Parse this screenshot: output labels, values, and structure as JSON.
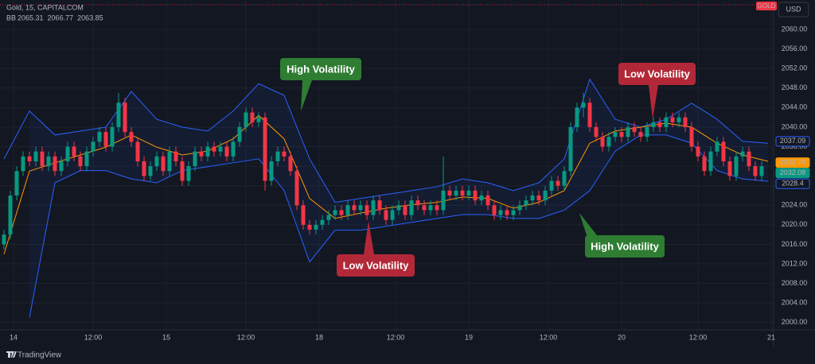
{
  "chart_data": {
    "type": "candlestick",
    "title": "Gold, 15, CAPITALCOM",
    "indicator": {
      "name": "BB",
      "values": [
        2065.31,
        2066.77,
        2063.85
      ],
      "colors": [
        "#ff9800",
        "#2962ff",
        "#2962ff"
      ]
    },
    "symbol_badge": "GOLD",
    "currency": "USD",
    "footer": "TradingView",
    "up_color": "#089981",
    "down_color": "#f23645",
    "grid": true,
    "xlim": [
      0,
      121
    ],
    "ylim": [
      1998.5,
      2064.4
    ],
    "xticks": [
      {
        "value": 1.5,
        "label": "14"
      },
      {
        "value": 14,
        "label": "12:00"
      },
      {
        "value": 25.5,
        "label": "15"
      },
      {
        "value": 38,
        "label": "12:00"
      },
      {
        "value": 49.5,
        "label": "18"
      },
      {
        "value": 61.5,
        "label": "12:00"
      },
      {
        "value": 73,
        "label": "19"
      },
      {
        "value": 85.5,
        "label": "12:00"
      },
      {
        "value": 97,
        "label": "20"
      },
      {
        "value": 109,
        "label": "12:00"
      },
      {
        "value": 120.5,
        "label": "21"
      }
    ],
    "yticks": [
      {
        "value": 2000,
        "label": "2000.00"
      },
      {
        "value": 2004,
        "label": "2004.00"
      },
      {
        "value": 2008,
        "label": "2008.00"
      },
      {
        "value": 2012,
        "label": "2012.00"
      },
      {
        "value": 2016,
        "label": "2016.00"
      },
      {
        "value": 2020,
        "label": "2020.00"
      },
      {
        "value": 2024,
        "label": "2024.00"
      },
      {
        "value": 2028,
        "label": "2028.00"
      },
      {
        "value": 2032,
        "label": "2032.00"
      },
      {
        "value": 2036,
        "label": "2036.00"
      },
      {
        "value": 2040,
        "label": "2040.00"
      },
      {
        "value": 2044,
        "label": "2044.00"
      },
      {
        "value": 2048,
        "label": "2048.00"
      },
      {
        "value": 2052,
        "label": "2052.00"
      },
      {
        "value": 2056,
        "label": "2056.00"
      },
      {
        "value": 2060,
        "label": "2060.00"
      }
    ],
    "candles": [
      [
        2016,
        2019,
        2015,
        2018
      ],
      [
        2018,
        2027,
        2017,
        2026
      ],
      [
        2026,
        2032,
        2025,
        2031
      ],
      [
        2031,
        2035,
        2030,
        2034
      ],
      [
        2034,
        2035,
        2032,
        2033
      ],
      [
        2033,
        2036,
        2032,
        2035
      ],
      [
        2035,
        2036,
        2031,
        2032
      ],
      [
        2032,
        2035,
        2031,
        2034
      ],
      [
        2034,
        2035,
        2030,
        2031
      ],
      [
        2031,
        2034,
        2030,
        2033
      ],
      [
        2033,
        2037,
        2032,
        2036
      ],
      [
        2036,
        2037,
        2033,
        2034
      ],
      [
        2034,
        2035,
        2031,
        2032
      ],
      [
        2032,
        2036,
        2031,
        2035
      ],
      [
        2035,
        2038,
        2034,
        2037
      ],
      [
        2037,
        2040,
        2036,
        2039
      ],
      [
        2039,
        2040,
        2035,
        2036
      ],
      [
        2036,
        2041,
        2035,
        2040
      ],
      [
        2040,
        2047,
        2039,
        2045
      ],
      [
        2045,
        2046,
        2038,
        2039
      ],
      [
        2039,
        2040,
        2036,
        2037
      ],
      [
        2037,
        2038,
        2032,
        2033
      ],
      [
        2033,
        2034,
        2029,
        2030
      ],
      [
        2030,
        2033,
        2029,
        2032
      ],
      [
        2032,
        2035,
        2031,
        2034
      ],
      [
        2034,
        2035,
        2030,
        2031
      ],
      [
        2031,
        2036,
        2030,
        2035
      ],
      [
        2035,
        2036,
        2032,
        2033
      ],
      [
        2033,
        2034,
        2028,
        2029
      ],
      [
        2029,
        2033,
        2028,
        2032
      ],
      [
        2032,
        2036,
        2031,
        2035
      ],
      [
        2035,
        2036,
        2033,
        2034
      ],
      [
        2034,
        2037,
        2033,
        2036
      ],
      [
        2036,
        2037,
        2034,
        2035
      ],
      [
        2035,
        2037,
        2034,
        2036
      ],
      [
        2036,
        2037,
        2033,
        2034
      ],
      [
        2034,
        2038,
        2033,
        2037
      ],
      [
        2037,
        2041,
        2036,
        2040
      ],
      [
        2040,
        2044,
        2039,
        2043
      ],
      [
        2043,
        2044,
        2040,
        2041
      ],
      [
        2041,
        2043,
        2040,
        2042
      ],
      [
        2042,
        2043,
        2027,
        2029
      ],
      [
        2029,
        2034,
        2028,
        2033
      ],
      [
        2033,
        2036,
        2032,
        2035
      ],
      [
        2035,
        2036,
        2033,
        2034
      ],
      [
        2034,
        2035,
        2030,
        2031
      ],
      [
        2031,
        2032,
        2023,
        2024
      ],
      [
        2024,
        2025,
        2019,
        2020
      ],
      [
        2020,
        2021,
        2018,
        2019
      ],
      [
        2019,
        2021,
        2018,
        2020
      ],
      [
        2020,
        2022,
        2019,
        2021
      ],
      [
        2021,
        2023,
        2020,
        2022
      ],
      [
        2022,
        2024,
        2021,
        2023
      ],
      [
        2023,
        2024,
        2021,
        2022
      ],
      [
        2022,
        2025,
        2021,
        2024
      ],
      [
        2024,
        2025,
        2022,
        2023
      ],
      [
        2023,
        2025,
        2022,
        2024
      ],
      [
        2024,
        2025,
        2021,
        2022
      ],
      [
        2022,
        2026,
        2021,
        2025
      ],
      [
        2025,
        2026,
        2022,
        2023
      ],
      [
        2023,
        2024,
        2020,
        2021
      ],
      [
        2021,
        2024,
        2020,
        2023
      ],
      [
        2023,
        2025,
        2022,
        2024
      ],
      [
        2024,
        2025,
        2021,
        2022
      ],
      [
        2022,
        2026,
        2021,
        2025
      ],
      [
        2025,
        2026,
        2023,
        2024
      ],
      [
        2024,
        2025,
        2022,
        2023
      ],
      [
        2023,
        2025,
        2022,
        2024
      ],
      [
        2024,
        2025,
        2022,
        2023
      ],
      [
        2023,
        2034,
        2022,
        2027
      ],
      [
        2027,
        2028,
        2025,
        2026
      ],
      [
        2026,
        2028,
        2025,
        2027
      ],
      [
        2027,
        2028,
        2025,
        2026
      ],
      [
        2026,
        2028,
        2025,
        2027
      ],
      [
        2027,
        2028,
        2024,
        2025
      ],
      [
        2025,
        2027,
        2024,
        2026
      ],
      [
        2026,
        2027,
        2023,
        2024
      ],
      [
        2024,
        2025,
        2021,
        2022
      ],
      [
        2022,
        2024,
        2021,
        2023
      ],
      [
        2023,
        2024,
        2021,
        2022
      ],
      [
        2022,
        2024,
        2021,
        2023
      ],
      [
        2023,
        2025,
        2022,
        2024
      ],
      [
        2024,
        2026,
        2023,
        2025
      ],
      [
        2025,
        2027,
        2024,
        2026
      ],
      [
        2026,
        2027,
        2024,
        2025
      ],
      [
        2025,
        2028,
        2024,
        2027
      ],
      [
        2027,
        2030,
        2026,
        2029
      ],
      [
        2029,
        2030,
        2027,
        2028
      ],
      [
        2028,
        2032,
        2027,
        2031
      ],
      [
        2031,
        2041,
        2030,
        2040
      ],
      [
        2040,
        2045,
        2039,
        2044
      ],
      [
        2044,
        2047,
        2042,
        2045
      ],
      [
        2045,
        2046,
        2039,
        2040
      ],
      [
        2040,
        2041,
        2037,
        2038
      ],
      [
        2038,
        2039,
        2035,
        2036
      ],
      [
        2036,
        2039,
        2035,
        2038
      ],
      [
        2038,
        2040,
        2037,
        2039
      ],
      [
        2039,
        2040,
        2037,
        2038
      ],
      [
        2038,
        2041,
        2037,
        2040
      ],
      [
        2040,
        2041,
        2038,
        2039
      ],
      [
        2039,
        2040,
        2037,
        2038
      ],
      [
        2038,
        2041,
        2037,
        2040
      ],
      [
        2040,
        2042,
        2039,
        2041
      ],
      [
        2041,
        2042,
        2039,
        2040
      ],
      [
        2040,
        2043,
        2039,
        2042
      ],
      [
        2042,
        2043,
        2040,
        2041
      ],
      [
        2041,
        2043,
        2040,
        2042
      ],
      [
        2042,
        2043,
        2039,
        2040
      ],
      [
        2040,
        2041,
        2035,
        2036
      ],
      [
        2036,
        2037,
        2033,
        2034
      ],
      [
        2034,
        2035,
        2030,
        2031
      ],
      [
        2031,
        2036,
        2030,
        2035
      ],
      [
        2035,
        2038,
        2034,
        2037
      ],
      [
        2037,
        2038,
        2032,
        2033
      ],
      [
        2033,
        2034,
        2029,
        2030
      ],
      [
        2030,
        2035,
        2029,
        2034
      ],
      [
        2034,
        2036,
        2033,
        2035
      ],
      [
        2035,
        2036,
        2031,
        2032
      ],
      [
        2032,
        2033,
        2029,
        2030
      ],
      [
        2030,
        2033,
        2029,
        2032
      ]
    ],
    "bands": {
      "x": [
        0,
        4,
        8,
        12,
        16,
        20,
        24,
        28,
        32,
        36,
        40,
        44,
        48,
        52,
        56,
        60,
        64,
        68,
        72,
        76,
        80,
        84,
        88,
        92,
        96,
        100,
        104,
        108,
        112,
        116,
        120
      ],
      "series": [
        {
          "color": "#2962ff",
          "values": [
            2033.5,
            2043.3,
            2038.4,
            2039.2,
            2040.0,
            2047.3,
            2041.6,
            2040.0,
            2039.2,
            2043.3,
            2048.9,
            2046.5,
            2033.5,
            2024.6,
            2025.4,
            2026.2,
            2027.0,
            2027.8,
            2029.4,
            2028.6,
            2027.0,
            2028.6,
            2033.5,
            2049.8,
            2041.6,
            2040.0,
            2041.6,
            2044.9,
            2041.6,
            2037.1,
            2036.7
          ]
        },
        {
          "color": "#ff9800",
          "values": [
            2014.0,
            2031.0,
            2032.7,
            2034.3,
            2035.9,
            2038.4,
            2035.9,
            2034.3,
            2035.1,
            2037.6,
            2042.4,
            2037.6,
            2025.4,
            2021.3,
            2022.4,
            2023.4,
            2024.1,
            2024.6,
            2025.7,
            2025.4,
            2023.4,
            2024.6,
            2027.0,
            2036.7,
            2039.2,
            2040.0,
            2040.8,
            2040.0,
            2036.7,
            2034.3,
            2033.0
          ]
        },
        {
          "color": "#2962ff",
          "values": [
            null,
            2001.0,
            2028.6,
            2031.1,
            2031.1,
            2029.4,
            2028.6,
            2031.1,
            2031.9,
            2032.7,
            2033.5,
            2027.0,
            2012.4,
            2018.9,
            2018.9,
            2019.7,
            2020.5,
            2021.3,
            2022.1,
            2022.1,
            2021.3,
            2021.3,
            2023.0,
            2027.0,
            2035.1,
            2038.4,
            2038.4,
            2036.7,
            2031.1,
            2029.4,
            2028.9
          ]
        }
      ]
    },
    "price_labels": [
      {
        "value": 2037.09,
        "color": "#2962ff"
      },
      {
        "value": 2032.74,
        "color": "#ff9800"
      },
      {
        "value": 2032.08,
        "color": "#089981"
      },
      {
        "value": 2028.4,
        "color": "#2962ff"
      }
    ],
    "annotations": [
      {
        "text": "High Volatility",
        "color": "#2e7d32"
      },
      {
        "text": "Low Volatility",
        "color": "#b22838"
      },
      {
        "text": "Low Volatility",
        "color": "#b22838"
      },
      {
        "text": "High Volatility",
        "color": "#2e7d32"
      }
    ]
  }
}
